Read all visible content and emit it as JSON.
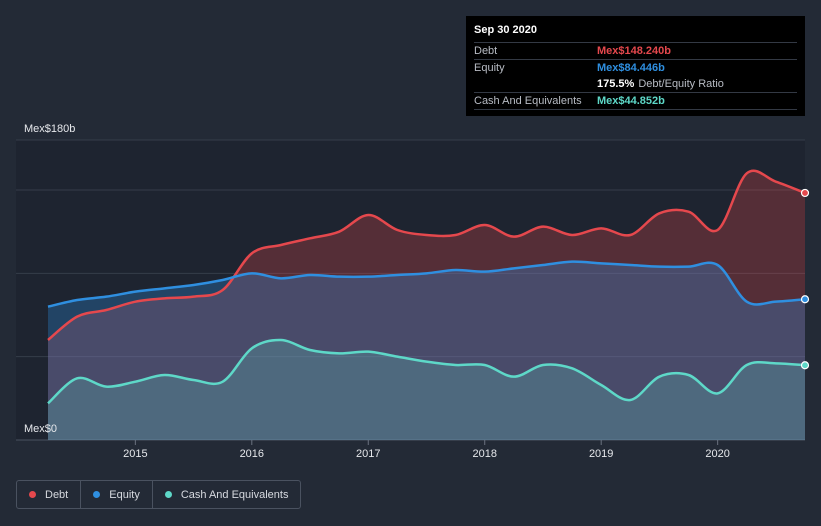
{
  "chart_data": {
    "type": "area",
    "y_unit_labels": {
      "top": "Mex$180b",
      "bottom": "Mex$0"
    },
    "ylim": [
      0,
      180
    ],
    "xlim": [
      2014.25,
      2020.75
    ],
    "x_ticks": [
      {
        "value": 2015,
        "label": "2015"
      },
      {
        "value": 2016,
        "label": "2016"
      },
      {
        "value": 2017,
        "label": "2017"
      },
      {
        "value": 2018,
        "label": "2018"
      },
      {
        "value": 2019,
        "label": "2019"
      },
      {
        "value": 2020,
        "label": "2020"
      }
    ],
    "series": [
      {
        "name": "Debt",
        "color": "#e5484d",
        "points": [
          [
            2014.25,
            60
          ],
          [
            2014.5,
            74
          ],
          [
            2014.75,
            78
          ],
          [
            2015.0,
            83
          ],
          [
            2015.25,
            85
          ],
          [
            2015.5,
            86
          ],
          [
            2015.75,
            90
          ],
          [
            2016.0,
            112
          ],
          [
            2016.25,
            117
          ],
          [
            2016.5,
            121
          ],
          [
            2016.75,
            125
          ],
          [
            2017.0,
            135
          ],
          [
            2017.25,
            126
          ],
          [
            2017.5,
            123
          ],
          [
            2017.75,
            123
          ],
          [
            2018.0,
            129
          ],
          [
            2018.25,
            122
          ],
          [
            2018.5,
            128
          ],
          [
            2018.75,
            123
          ],
          [
            2019.0,
            127
          ],
          [
            2019.25,
            123
          ],
          [
            2019.5,
            136
          ],
          [
            2019.75,
            137
          ],
          [
            2020.0,
            126
          ],
          [
            2020.25,
            160
          ],
          [
            2020.5,
            155
          ],
          [
            2020.75,
            148.24
          ]
        ]
      },
      {
        "name": "Equity",
        "color": "#2f8fe0",
        "points": [
          [
            2014.25,
            80
          ],
          [
            2014.5,
            84
          ],
          [
            2014.75,
            86
          ],
          [
            2015.0,
            89
          ],
          [
            2015.25,
            91
          ],
          [
            2015.5,
            93
          ],
          [
            2015.75,
            96
          ],
          [
            2016.0,
            100
          ],
          [
            2016.25,
            97
          ],
          [
            2016.5,
            99
          ],
          [
            2016.75,
            98
          ],
          [
            2017.0,
            98
          ],
          [
            2017.25,
            99
          ],
          [
            2017.5,
            100
          ],
          [
            2017.75,
            102
          ],
          [
            2018.0,
            101
          ],
          [
            2018.25,
            103
          ],
          [
            2018.5,
            105
          ],
          [
            2018.75,
            107
          ],
          [
            2019.0,
            106
          ],
          [
            2019.25,
            105
          ],
          [
            2019.5,
            104
          ],
          [
            2019.75,
            104
          ],
          [
            2020.0,
            105
          ],
          [
            2020.25,
            83
          ],
          [
            2020.5,
            83
          ],
          [
            2020.75,
            84.446
          ]
        ]
      },
      {
        "name": "Cash And Equivalents",
        "color": "#5ed8c8",
        "points": [
          [
            2014.25,
            22
          ],
          [
            2014.5,
            37
          ],
          [
            2014.75,
            32
          ],
          [
            2015.0,
            35
          ],
          [
            2015.25,
            39
          ],
          [
            2015.5,
            36
          ],
          [
            2015.75,
            35
          ],
          [
            2016.0,
            55
          ],
          [
            2016.25,
            60
          ],
          [
            2016.5,
            54
          ],
          [
            2016.75,
            52
          ],
          [
            2017.0,
            53
          ],
          [
            2017.25,
            50
          ],
          [
            2017.5,
            47
          ],
          [
            2017.75,
            45
          ],
          [
            2018.0,
            45
          ],
          [
            2018.25,
            38
          ],
          [
            2018.5,
            45
          ],
          [
            2018.75,
            43
          ],
          [
            2019.0,
            33
          ],
          [
            2019.25,
            24
          ],
          [
            2019.5,
            38
          ],
          [
            2019.75,
            39
          ],
          [
            2020.0,
            28
          ],
          [
            2020.25,
            45
          ],
          [
            2020.5,
            46
          ],
          [
            2020.75,
            44.852
          ]
        ]
      }
    ]
  },
  "tooltip": {
    "date": "Sep 30 2020",
    "rows": [
      {
        "label": "Debt",
        "value": "Mex$148.240b",
        "color": "#e5484d"
      },
      {
        "label": "Equity",
        "value": "Mex$84.446b",
        "color": "#2f8fe0"
      }
    ],
    "ratio_value": "175.5%",
    "ratio_label": "Debt/Equity Ratio",
    "cash_label": "Cash And Equivalents",
    "cash_value": "Mex$44.852b",
    "cash_color": "#5ed8c8"
  },
  "legend": [
    {
      "label": "Debt",
      "color": "#e5484d"
    },
    {
      "label": "Equity",
      "color": "#2f8fe0"
    },
    {
      "label": "Cash And Equivalents",
      "color": "#5ed8c8"
    }
  ]
}
